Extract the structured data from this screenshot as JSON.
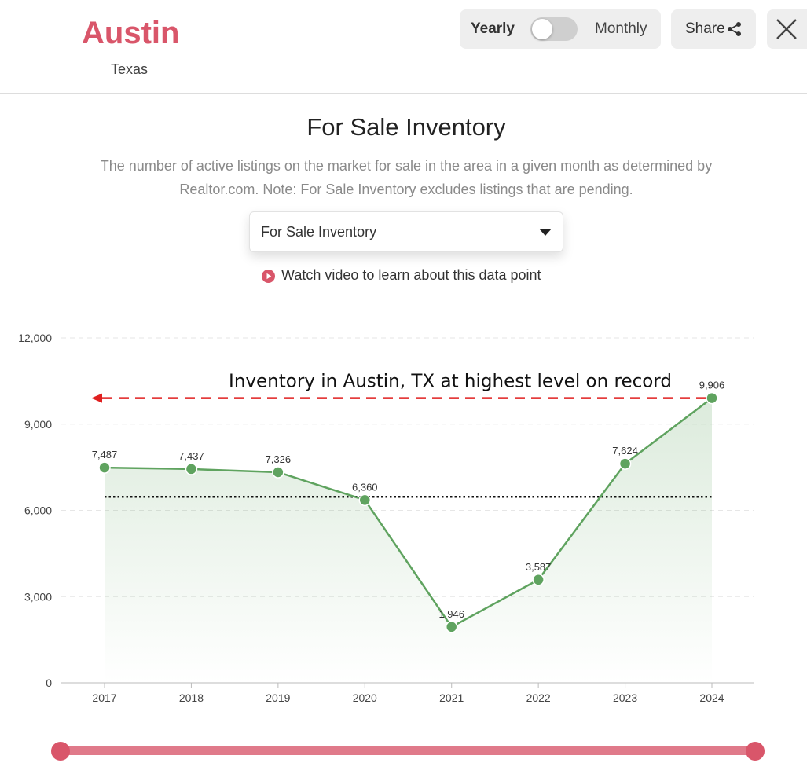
{
  "header": {
    "city": "Austin",
    "state": "Texas",
    "toggle": {
      "left_label": "Yearly",
      "right_label": "Monthly",
      "selected": "Yearly"
    },
    "share_label": "Share"
  },
  "main": {
    "title": "For Sale Inventory",
    "description": "The number of active listings on the market for sale in the area in a given month as determined by Realtor.com. Note: For Sale Inventory excludes listings that are pending.",
    "select": {
      "value": "For Sale Inventory"
    },
    "video_link": "Watch video to learn about this data point"
  },
  "icons": {
    "share": "share-icon",
    "close": "close-icon",
    "play": "play-circle-icon",
    "caret": "caret-down-icon"
  },
  "colors": {
    "accent": "#d9566a",
    "line": "#5fa35f",
    "annotation": "#e02020",
    "reference_line": "#111111"
  },
  "chart_data": {
    "type": "area",
    "categories": [
      "2017",
      "2018",
      "2019",
      "2020",
      "2021",
      "2022",
      "2023",
      "2024"
    ],
    "values": [
      7487,
      7437,
      7326,
      6360,
      1946,
      3587,
      7624,
      9906
    ],
    "value_labels": [
      "7,487",
      "7,437",
      "7,326",
      "6,360",
      "1,946",
      "3,587",
      "7,624",
      "9,906"
    ],
    "ylim": [
      0,
      12000
    ],
    "yticks": [
      0,
      3000,
      6000,
      9000,
      12000
    ],
    "ytick_labels": [
      "0",
      "3,000",
      "6,000",
      "9,000",
      "12,000"
    ],
    "grid": true,
    "reference_line": {
      "value": 6470,
      "style": "dotted"
    },
    "annotation": {
      "text": "Inventory in Austin, TX at highest level on record",
      "arrow_value": 9906,
      "style": "dashed-arrow"
    }
  },
  "range_slider": {
    "start": "2017",
    "end": "2024"
  }
}
